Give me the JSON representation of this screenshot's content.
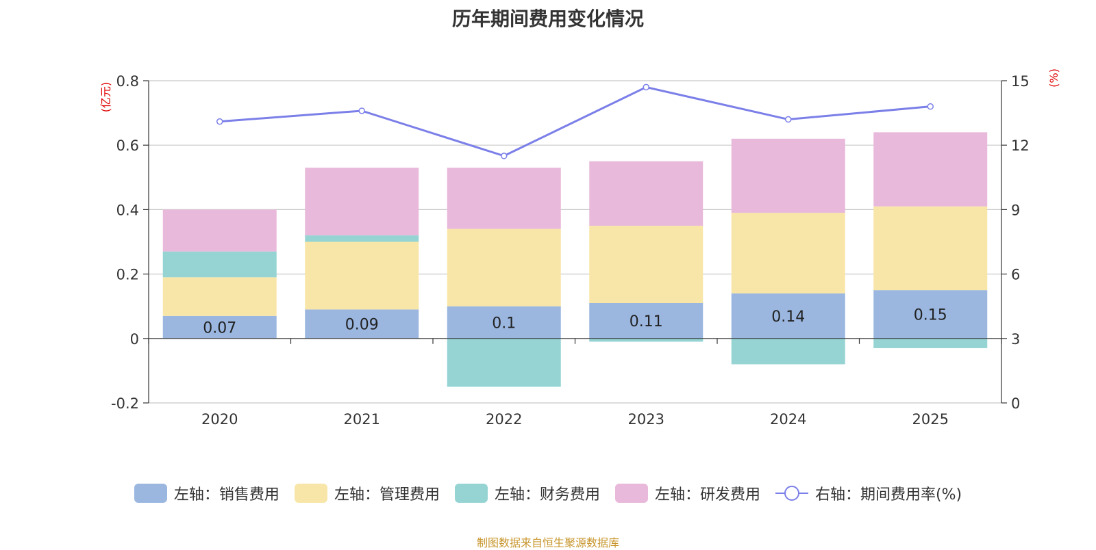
{
  "chart_data": {
    "type": "bar",
    "title": "历年期间费用变化情况",
    "categories": [
      "2020",
      "2021",
      "2022",
      "2023",
      "2024",
      "2025"
    ],
    "left_axis": {
      "unit": "(亿元)",
      "ylim": [
        -0.2,
        0.8
      ],
      "ticks": [
        "-0.2",
        "0",
        "0.2",
        "0.4",
        "0.6",
        "0.8"
      ],
      "tick_values": [
        -0.2,
        0,
        0.2,
        0.4,
        0.6,
        0.8
      ]
    },
    "right_axis": {
      "unit": "(%)",
      "ylim": [
        0,
        15
      ],
      "ticks": [
        "0",
        "3",
        "6",
        "9",
        "12",
        "15"
      ],
      "tick_values": [
        0,
        3,
        6,
        9,
        12,
        15
      ]
    },
    "series": [
      {
        "name": "左轴：销售费用",
        "color": "#9bb7e0",
        "values": [
          0.07,
          0.09,
          0.1,
          0.11,
          0.14,
          0.15
        ],
        "labels": [
          "0.07",
          "0.09",
          "0.1",
          "0.11",
          "0.14",
          "0.15"
        ]
      },
      {
        "name": "左轴：管理费用",
        "color": "#f8e6a8",
        "values": [
          0.12,
          0.21,
          0.24,
          0.24,
          0.25,
          0.26
        ]
      },
      {
        "name": "左轴：财务费用",
        "color": "#96d4d4",
        "values": [
          0.08,
          0.02,
          -0.15,
          -0.01,
          -0.08,
          -0.03
        ]
      },
      {
        "name": "左轴：研发费用",
        "color": "#e8b9da",
        "values": [
          0.13,
          0.21,
          0.19,
          0.2,
          0.23,
          0.23
        ]
      },
      {
        "name": "右轴：期间费用率(%)",
        "color": "#7b7fe8",
        "type": "line",
        "axis": "right",
        "values": [
          13.1,
          13.6,
          11.5,
          14.7,
          13.2,
          13.8
        ]
      }
    ]
  },
  "source": "制图数据来自恒生聚源数据库"
}
